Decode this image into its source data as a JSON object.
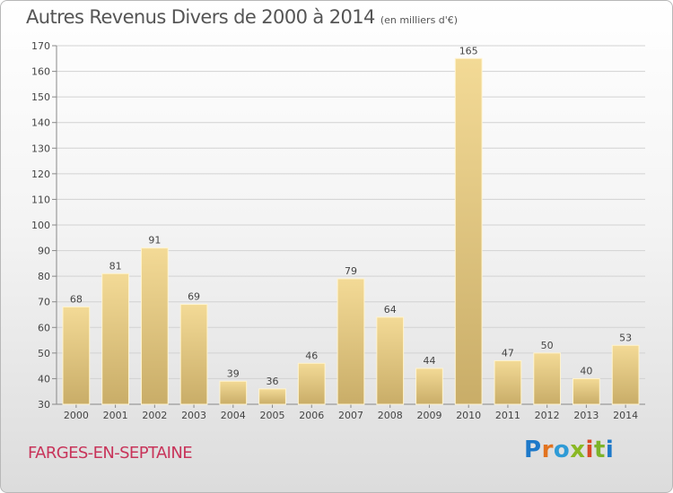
{
  "chart_data": {
    "type": "bar",
    "title": "Autres Revenus Divers de 2000 à 2014",
    "subtitle": "(en milliers d'€)",
    "categories": [
      "2000",
      "2001",
      "2002",
      "2003",
      "2004",
      "2005",
      "2006",
      "2007",
      "2008",
      "2009",
      "2010",
      "2011",
      "2012",
      "2013",
      "2014"
    ],
    "values": [
      68,
      81,
      91,
      69,
      39,
      36,
      46,
      79,
      64,
      44,
      165,
      47,
      50,
      40,
      53
    ],
    "ylim": [
      30,
      170
    ],
    "yticks": [
      30,
      40,
      50,
      60,
      70,
      80,
      90,
      100,
      110,
      120,
      130,
      140,
      150,
      160,
      170
    ],
    "grid": true,
    "bar_color": "#e6cc84"
  },
  "footer": {
    "place": "FARGES-EN-SEPTAINE",
    "logo_text": "Proxiti",
    "logo_colors": [
      "#1d79c9",
      "#e2731f",
      "#2f9bd6",
      "#8ab824",
      "#d94a26",
      "#7cb32a"
    ]
  }
}
